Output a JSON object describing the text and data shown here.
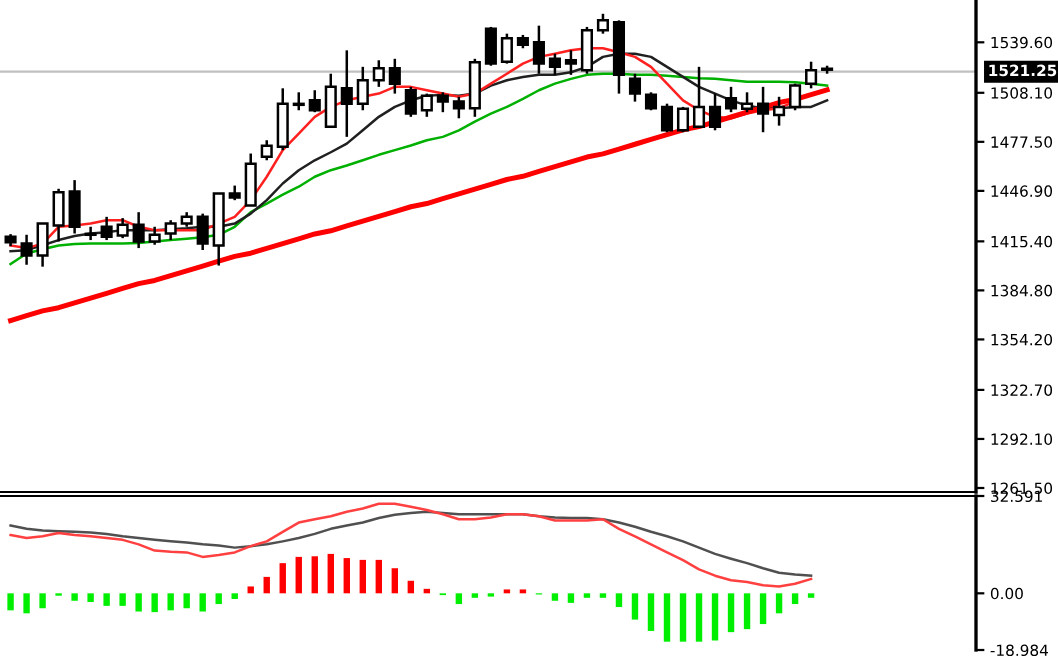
{
  "chart_data": [
    {
      "type": "candlestick",
      "tick_labels": "y",
      "grid": false,
      "legend": false,
      "categories": [
        null,
        null,
        null,
        null,
        null,
        null,
        null,
        null,
        null,
        null,
        null,
        null,
        null,
        null,
        null,
        null,
        null,
        null,
        null,
        null,
        null,
        null,
        null,
        null,
        null,
        null,
        null,
        null,
        null,
        null,
        null,
        null,
        null,
        null,
        null,
        null,
        null,
        null,
        null,
        null,
        null,
        null,
        null,
        null,
        null,
        null,
        null,
        null,
        null,
        null,
        null,
        null
      ],
      "ohlc": [
        [
          1418.3,
          1419.9,
          1412.4,
          1414.9
        ],
        [
          1414.0,
          1419.5,
          1400.8,
          1406.6
        ],
        [
          1406.6,
          1426.5,
          1399.6,
          1426.5
        ],
        [
          1425.3,
          1448.2,
          1415.3,
          1446.1
        ],
        [
          1446.5,
          1453.6,
          1420.3,
          1424.5
        ],
        [
          1419.9,
          1424.5,
          1416.2,
          1419.5
        ],
        [
          1424.5,
          1430.7,
          1416.2,
          1418.3
        ],
        [
          1419.0,
          1429.9,
          1417.4,
          1425.8
        ],
        [
          1425.8,
          1433.6,
          1411.2,
          1415.3
        ],
        [
          1415.3,
          1424.5,
          1413.3,
          1419.5
        ],
        [
          1420.3,
          1428.6,
          1416.2,
          1426.5
        ],
        [
          1426.5,
          1433.6,
          1424.5,
          1430.7
        ],
        [
          1430.7,
          1432.7,
          1410.0,
          1414.0
        ],
        [
          1412.8,
          1445.2,
          1400.3,
          1445.2
        ],
        [
          1445.2,
          1450.2,
          1441.1,
          1442.7
        ],
        [
          1437.7,
          1470.2,
          1437.7,
          1463.9
        ],
        [
          1468.2,
          1478.5,
          1466.0,
          1475.1
        ],
        [
          1474.4,
          1510.9,
          1472.3,
          1501.3
        ],
        [
          1500.6,
          1508.4,
          1497.2,
          1501.0
        ],
        [
          1503.4,
          1509.7,
          1496.0,
          1497.2
        ],
        [
          1486.9,
          1520.0,
          1486.9,
          1511.8
        ],
        [
          1510.9,
          1534.6,
          1480.6,
          1501.3
        ],
        [
          1501.3,
          1524.3,
          1497.2,
          1515.9
        ],
        [
          1515.9,
          1528.4,
          1511.8,
          1523.4
        ],
        [
          1523.4,
          1529.3,
          1507.6,
          1513.8
        ],
        [
          1509.7,
          1511.8,
          1493.1,
          1495.1
        ],
        [
          1497.2,
          1507.6,
          1493.1,
          1506.3
        ],
        [
          1506.3,
          1508.4,
          1496.0,
          1502.6
        ],
        [
          1502.6,
          1505.6,
          1492.2,
          1498.5
        ],
        [
          1498.5,
          1529.3,
          1493.1,
          1527.1
        ],
        [
          1548.0,
          1549.2,
          1525.0,
          1526.3
        ],
        [
          1527.5,
          1545.0,
          1526.3,
          1542.1
        ],
        [
          1542.1,
          1544.2,
          1535.9,
          1538.0
        ],
        [
          1539.6,
          1550.0,
          1520.0,
          1526.3
        ],
        [
          1529.3,
          1532.5,
          1519.3,
          1524.3
        ],
        [
          1528.4,
          1534.6,
          1519.3,
          1526.3
        ],
        [
          1522.2,
          1549.2,
          1520.0,
          1547.1
        ],
        [
          1547.1,
          1557.4,
          1545.0,
          1553.3
        ],
        [
          1552.1,
          1553.3,
          1507.6,
          1519.3
        ],
        [
          1516.8,
          1520.0,
          1502.6,
          1507.6
        ],
        [
          1506.8,
          1508.4,
          1497.2,
          1498.5
        ],
        [
          1499.3,
          1501.3,
          1483.5,
          1484.7
        ],
        [
          1484.7,
          1499.3,
          1483.5,
          1498.1
        ],
        [
          1486.9,
          1524.3,
          1486.9,
          1499.3
        ],
        [
          1499.3,
          1507.6,
          1484.7,
          1486.9
        ],
        [
          1504.7,
          1511.8,
          1496.0,
          1498.5
        ],
        [
          1498.1,
          1508.4,
          1496.0,
          1501.3
        ],
        [
          1501.3,
          1511.8,
          1483.5,
          1495.1
        ],
        [
          1494.3,
          1505.6,
          1487.6,
          1499.3
        ],
        [
          1499.3,
          1513.8,
          1497.2,
          1512.6
        ],
        [
          1513.8,
          1527.5,
          1510.9,
          1522.2
        ],
        [
          1523.0,
          1525.0,
          1520.0,
          1522.5
        ]
      ],
      "series": [
        {
          "type": "line",
          "color": "#00b000",
          "values": [
            1401.2,
            1407.8,
            1410.5,
            1412.8,
            1413.7,
            1414.0,
            1414.0,
            1414.0,
            1414.3,
            1415.3,
            1416.2,
            1417.0,
            1418.0,
            1419.5,
            1424.5,
            1433.6,
            1439.0,
            1444.5,
            1449.5,
            1455.7,
            1459.8,
            1462.7,
            1466.0,
            1469.4,
            1472.3,
            1475.2,
            1478.5,
            1480.6,
            1484.7,
            1490.1,
            1495.1,
            1499.3,
            1504.3,
            1509.7,
            1513.8,
            1516.8,
            1519.3,
            1520.0,
            1520.0,
            1519.3,
            1519.3,
            1518.8,
            1518.0,
            1517.2,
            1516.8,
            1515.9,
            1515.0,
            1515.0,
            1515.0,
            1514.7,
            1513.8,
            1512.6
          ]
        },
        {
          "type": "line",
          "color": "#202020",
          "values": [
            1409.3,
            1409.9,
            1413.0,
            1416.2,
            1418.7,
            1420.3,
            1421.1,
            1422.4,
            1422.4,
            1422.4,
            1423.0,
            1423.6,
            1424.5,
            1424.5,
            1426.5,
            1432.7,
            1441.1,
            1451.5,
            1459.8,
            1466.0,
            1471.0,
            1476.4,
            1484.7,
            1493.1,
            1499.3,
            1503.4,
            1506.3,
            1506.8,
            1506.3,
            1507.6,
            1512.6,
            1515.9,
            1518.0,
            1519.3,
            1519.3,
            1520.9,
            1524.3,
            1530.5,
            1532.5,
            1532.5,
            1530.5,
            1524.3,
            1518.0,
            1511.8,
            1507.6,
            1503.4,
            1500.1,
            1498.5,
            1498.5,
            1499.3,
            1499.3,
            1503.4
          ]
        },
        {
          "type": "line",
          "color": "#ff2020",
          "values": [
            1412.8,
            1411.2,
            1414.0,
            1424.5,
            1425.3,
            1426.5,
            1428.6,
            1428.6,
            1424.5,
            1422.4,
            1422.4,
            1422.4,
            1422.4,
            1426.5,
            1430.7,
            1441.1,
            1455.7,
            1472.3,
            1482.6,
            1493.1,
            1499.3,
            1503.4,
            1505.6,
            1507.6,
            1511.8,
            1511.8,
            1509.7,
            1507.6,
            1505.6,
            1507.6,
            1513.8,
            1520.0,
            1526.3,
            1530.5,
            1532.5,
            1534.6,
            1535.9,
            1535.9,
            1533.4,
            1530.5,
            1524.3,
            1513.8,
            1503.4,
            1497.2,
            1493.1,
            1492.2,
            1495.1,
            1497.2,
            1498.5,
            1502.6,
            null,
            null
          ]
        },
        {
          "type": "line",
          "color": "#ff0000",
          "values": [
            1366,
            1369,
            1372,
            1374,
            1377,
            1380,
            1383,
            1386,
            1389,
            1391,
            1394,
            1397,
            1400,
            1403,
            1406,
            1408,
            1411,
            1414,
            1417,
            1420,
            1422,
            1425,
            1428,
            1431,
            1434,
            1437,
            1439,
            1442,
            1445,
            1448,
            1451,
            1454,
            1456,
            1459,
            1462,
            1465,
            1468,
            1470,
            1473,
            1476,
            1479,
            1482,
            1485,
            1487,
            1490,
            1493,
            1496,
            1499,
            1502,
            1504,
            1507,
            1510
          ]
        }
      ],
      "ref_lines": [
        {
          "axis": "y",
          "value": 1521.25,
          "label": "1521.25",
          "color": "#c0c0c0"
        }
      ],
      "ylim": [
        1259,
        1566
      ],
      "yticks": [
        {
          "value": 1539.6,
          "label": "1539.60"
        },
        {
          "value": 1508.1,
          "label": "1508.10"
        },
        {
          "value": 1477.5,
          "label": "1477.50"
        },
        {
          "value": 1446.9,
          "label": "1446.90"
        },
        {
          "value": 1415.4,
          "label": "1415.40"
        },
        {
          "value": 1384.8,
          "label": "1384.80"
        },
        {
          "value": 1354.2,
          "label": "1354.20"
        },
        {
          "value": 1322.7,
          "label": "1322.70"
        },
        {
          "value": 1292.1,
          "label": "1292.10"
        },
        {
          "value": 1261.5,
          "label": "1261.50"
        }
      ]
    },
    {
      "type": "bar",
      "tick_labels": "y",
      "grid": false,
      "legend": false,
      "categories": [
        null,
        null,
        null,
        null,
        null,
        null,
        null,
        null,
        null,
        null,
        null,
        null,
        null,
        null,
        null,
        null,
        null,
        null,
        null,
        null,
        null,
        null,
        null,
        null,
        null,
        null,
        null,
        null,
        null,
        null,
        null,
        null,
        null,
        null,
        null,
        null,
        null,
        null,
        null,
        null,
        null,
        null,
        null,
        null,
        null,
        null,
        null,
        null,
        null,
        null,
        null,
        null
      ],
      "series": [
        {
          "type": "bar",
          "values": [
            -5.7,
            -6.7,
            -5.0,
            -0.8,
            -2.5,
            -2.9,
            -4.2,
            -4.2,
            -6.1,
            -6.3,
            -5.7,
            -5.0,
            -6.1,
            -3.6,
            -1.9,
            2.3,
            5.5,
            10.1,
            12.2,
            12.4,
            13.2,
            11.8,
            11.2,
            11.2,
            8.4,
            4.2,
            1.5,
            -0.6,
            -3.6,
            -1.5,
            -1.1,
            1.3,
            1.3,
            -0.4,
            -2.5,
            -3.2,
            -1.5,
            -1.5,
            -4.6,
            -8.8,
            -12.6,
            -16.2,
            -16.2,
            -16.2,
            -15.8,
            -13.0,
            -12.0,
            -10.3,
            -6.7,
            -3.6,
            -1.5,
            null
          ],
          "colors": [
            "#00ee00",
            "#00ee00",
            "#00ee00",
            "#00ee00",
            "#00ee00",
            "#00ee00",
            "#00ee00",
            "#00ee00",
            "#00ee00",
            "#00ee00",
            "#00ee00",
            "#00ee00",
            "#00ee00",
            "#00ee00",
            "#00ee00",
            "#ff0000",
            "#ff0000",
            "#ff0000",
            "#ff0000",
            "#ff0000",
            "#ff0000",
            "#ff0000",
            "#ff0000",
            "#ff0000",
            "#ff0000",
            "#ff0000",
            "#ff0000",
            "#00ee00",
            "#00ee00",
            "#00ee00",
            "#00ee00",
            "#ff0000",
            "#ff0000",
            "#00ee00",
            "#00ee00",
            "#00ee00",
            "#00ee00",
            "#00ee00",
            "#00ee00",
            "#00ee00",
            "#00ee00",
            "#00ee00",
            "#00ee00",
            "#00ee00",
            "#00ee00",
            "#00ee00",
            "#00ee00",
            "#00ee00",
            "#00ee00",
            "#00ee00",
            "#00ee00",
            "#00ee00"
          ]
        },
        {
          "type": "line",
          "color": "#505050",
          "values": [
            22.7,
            21.6,
            21.0,
            20.8,
            20.6,
            20.4,
            19.9,
            19.1,
            18.5,
            17.9,
            17.4,
            17.0,
            16.4,
            16.0,
            15.3,
            15.8,
            16.4,
            17.4,
            18.5,
            19.9,
            21.6,
            22.7,
            23.7,
            25.2,
            26.3,
            26.9,
            27.3,
            26.9,
            26.5,
            26.5,
            26.5,
            26.5,
            26.5,
            25.8,
            25.4,
            25.2,
            25.2,
            24.8,
            23.7,
            22.3,
            20.6,
            19.1,
            17.4,
            15.3,
            13.2,
            11.6,
            10.1,
            8.4,
            6.9,
            6.3,
            5.9,
            null
          ]
        },
        {
          "type": "line",
          "color": "#ff4040",
          "values": [
            19.5,
            18.5,
            19.1,
            20.2,
            19.5,
            19.1,
            18.5,
            17.9,
            16.4,
            14.3,
            13.9,
            13.7,
            12.2,
            12.8,
            13.7,
            15.8,
            17.4,
            20.6,
            23.7,
            24.8,
            25.8,
            27.3,
            28.4,
            30.0,
            30.0,
            29.0,
            27.9,
            26.5,
            24.8,
            24.8,
            25.4,
            26.5,
            26.5,
            25.8,
            24.4,
            24.4,
            24.4,
            24.8,
            21.6,
            19.1,
            16.4,
            13.7,
            11.1,
            8.0,
            5.9,
            4.4,
            3.8,
            2.7,
            2.3,
            3.2,
            4.8,
            null
          ]
        }
      ],
      "ylim": [
        -18.984,
        32.591
      ],
      "yticks": [
        {
          "value": 32.591,
          "label": "32.591"
        },
        {
          "value": 0,
          "label": "0.00"
        },
        {
          "value": -18.984,
          "label": "-18.984"
        }
      ]
    }
  ]
}
